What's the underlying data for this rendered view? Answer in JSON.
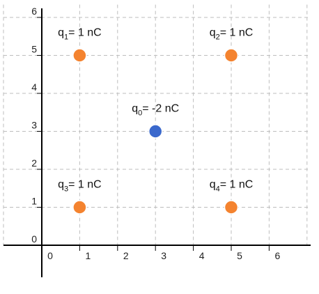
{
  "figure": {
    "x_ticks": [
      "0",
      "1",
      "2",
      "3",
      "4",
      "5",
      "6"
    ],
    "y_ticks": [
      "0",
      "1",
      "2",
      "3",
      "4",
      "5",
      "6"
    ],
    "x_range": [
      0,
      7
    ],
    "y_range": [
      0,
      6.3
    ],
    "grid": "dashed",
    "charges": [
      {
        "symbol": "q",
        "subscript": "1",
        "value": "= 1 nC",
        "x": 1,
        "y": 5,
        "color": "#f4832f"
      },
      {
        "symbol": "q",
        "subscript": "2",
        "value": "= 1 nC",
        "x": 5,
        "y": 5,
        "color": "#f4832f"
      },
      {
        "symbol": "q",
        "subscript": "0",
        "value": "= -2 nC",
        "x": 3,
        "y": 3,
        "color": "#3a68cc"
      },
      {
        "symbol": "q",
        "subscript": "3",
        "value": "= 1 nC",
        "x": 1,
        "y": 1,
        "color": "#f4832f"
      },
      {
        "symbol": "q",
        "subscript": "4",
        "value": "= 1 nC",
        "x": 5,
        "y": 1,
        "color": "#f4832f"
      }
    ]
  }
}
